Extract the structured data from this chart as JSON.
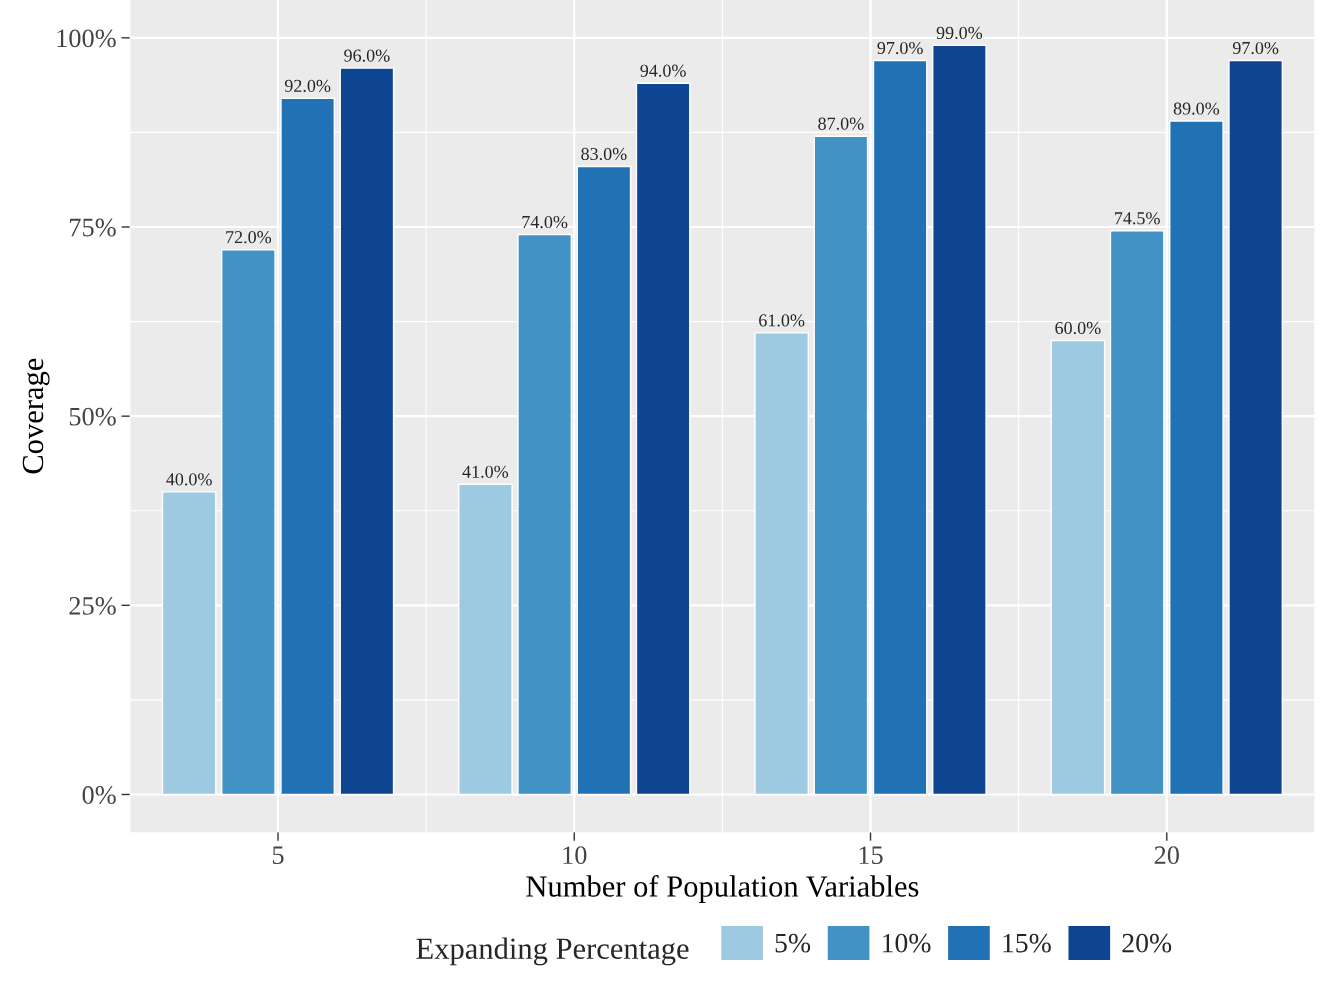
{
  "chart_data": {
    "type": "bar",
    "xlabel": "Number of Population Variables",
    "ylabel": "Coverage",
    "legend_title": "Expanding Percentage",
    "categories": [
      "5",
      "10",
      "15",
      "20"
    ],
    "series": [
      {
        "name": "5%",
        "color": "#9ecae1",
        "values": [
          40,
          41,
          61,
          60
        ],
        "value_labels": [
          "40.0%",
          "41.0%",
          "61.0%",
          "60.0%"
        ]
      },
      {
        "name": "10%",
        "color": "#4292c6",
        "values": [
          72,
          74,
          87,
          74.5
        ],
        "value_labels": [
          "72.0%",
          "74.0%",
          "87.0%",
          "74.5%"
        ]
      },
      {
        "name": "15%",
        "color": "#2171b5",
        "values": [
          92,
          83,
          97,
          89
        ],
        "value_labels": [
          "92.0%",
          "83.0%",
          "97.0%",
          "89.0%"
        ]
      },
      {
        "name": "20%",
        "color": "#0d4593",
        "values": [
          96,
          94,
          99,
          97
        ],
        "value_labels": [
          "96.0%",
          "94.0%",
          "99.0%",
          "97.0%"
        ]
      }
    ],
    "ylim": [
      -5,
      105
    ],
    "yticks": [
      {
        "value": 0,
        "label": "0%"
      },
      {
        "value": 25,
        "label": "25%"
      },
      {
        "value": 50,
        "label": "50%"
      },
      {
        "value": 75,
        "label": "75%"
      },
      {
        "value": 100,
        "label": "100%"
      }
    ],
    "grid": true,
    "legend": "bottom"
  }
}
